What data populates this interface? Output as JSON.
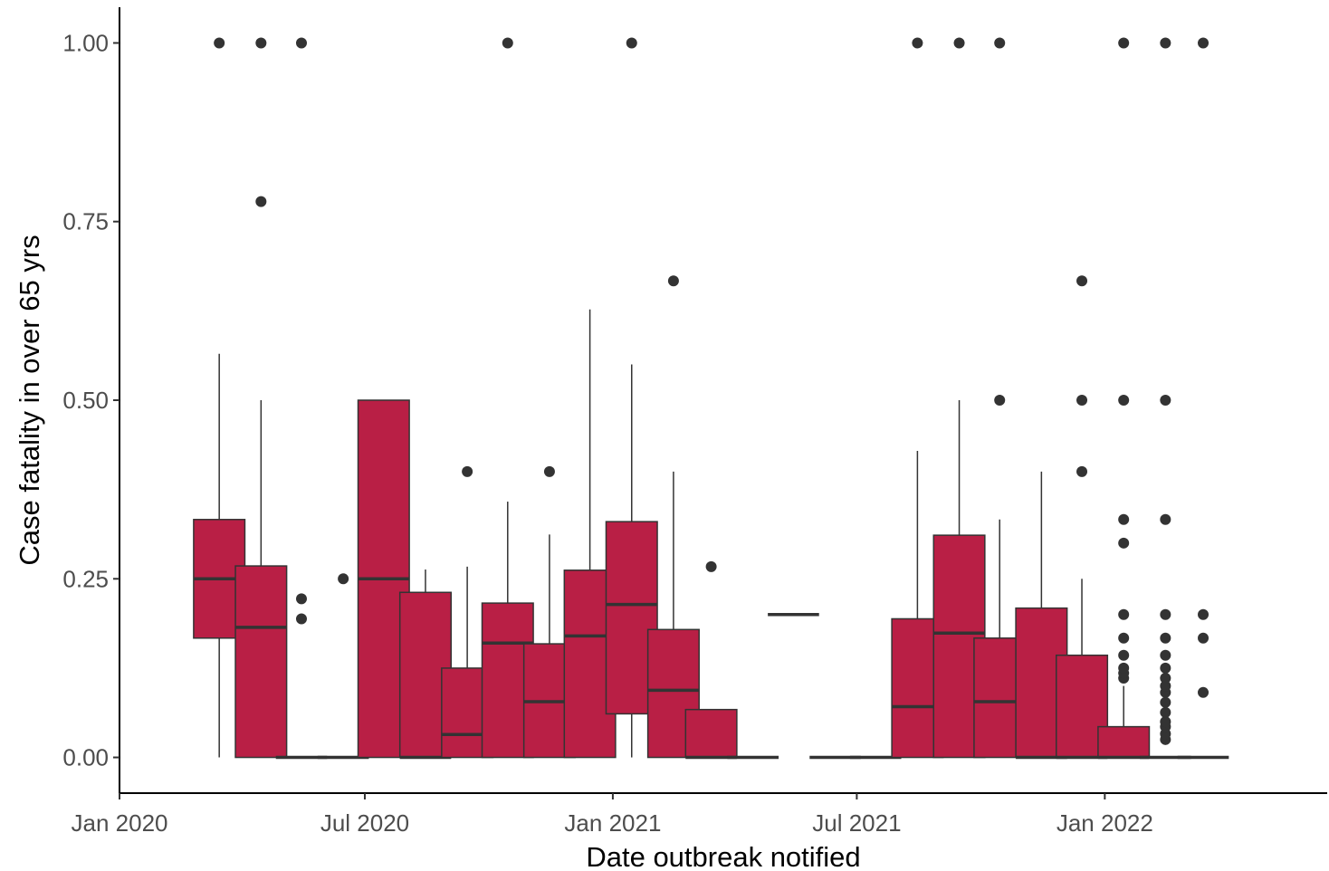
{
  "chart_data": {
    "type": "box",
    "xlabel": "Date outbreak notified",
    "ylabel": "Case fatality in over 65 yrs",
    "x_axis": {
      "type": "date",
      "range": [
        "2020-01-01",
        "2022-06-15"
      ],
      "ticks": [
        {
          "date": "2020-01-01",
          "label": "Jan 2020"
        },
        {
          "date": "2020-07-01",
          "label": "Jul 2020"
        },
        {
          "date": "2021-01-01",
          "label": "Jan 2021"
        },
        {
          "date": "2021-07-01",
          "label": "Jul 2021"
        },
        {
          "date": "2022-01-01",
          "label": "Jan 2022"
        }
      ]
    },
    "y_axis": {
      "range": [
        -0.05,
        1.05
      ],
      "ticks": [
        {
          "value": 0,
          "label": "0.00"
        },
        {
          "value": 0.25,
          "label": "0.25"
        },
        {
          "value": 0.5,
          "label": "0.50"
        },
        {
          "value": 0.75,
          "label": "0.75"
        },
        {
          "value": 1,
          "label": "1.00"
        }
      ]
    },
    "grid": false,
    "legend": "none",
    "fill_color": "#B91F45",
    "line_color": "#333333",
    "outlier_color": "#333333",
    "boxes": [
      {
        "month": "2020-03",
        "lower_whisker": 0.0,
        "q1": 0.167,
        "median": 0.25,
        "q3": 0.333,
        "upper_whisker": 0.565,
        "outliers": [
          1.0
        ]
      },
      {
        "month": "2020-04",
        "lower_whisker": 0.0,
        "q1": 0.0,
        "median": 0.182,
        "q3": 0.268,
        "upper_whisker": 0.5,
        "outliers": [
          0.778,
          1.0
        ]
      },
      {
        "month": "2020-05",
        "lower_whisker": 0.0,
        "q1": 0.0,
        "median": 0.0,
        "q3": 0.0,
        "upper_whisker": 0.0,
        "outliers": [
          0.194,
          0.222,
          1.0
        ]
      },
      {
        "month": "2020-06",
        "lower_whisker": 0.0,
        "q1": 0.0,
        "median": 0.0,
        "q3": 0.0,
        "upper_whisker": 0.0,
        "outliers": [
          0.25
        ]
      },
      {
        "month": "2020-07",
        "lower_whisker": 0.0,
        "q1": 0.0,
        "median": 0.25,
        "q3": 0.5,
        "upper_whisker": 0.5,
        "outliers": []
      },
      {
        "month": "2020-08",
        "lower_whisker": 0.0,
        "q1": 0.0,
        "median": 0.0,
        "q3": 0.231,
        "upper_whisker": 0.263,
        "outliers": []
      },
      {
        "month": "2020-09",
        "lower_whisker": 0.0,
        "q1": 0.0,
        "median": 0.032,
        "q3": 0.125,
        "upper_whisker": 0.267,
        "outliers": [
          0.4
        ]
      },
      {
        "month": "2020-10",
        "lower_whisker": 0.0,
        "q1": 0.0,
        "median": 0.16,
        "q3": 0.216,
        "upper_whisker": 0.358,
        "outliers": [
          1.0
        ]
      },
      {
        "month": "2020-11",
        "lower_whisker": 0.0,
        "q1": 0.0,
        "median": 0.078,
        "q3": 0.159,
        "upper_whisker": 0.312,
        "outliers": [
          0.4
        ]
      },
      {
        "month": "2020-12",
        "lower_whisker": 0.0,
        "q1": 0.0,
        "median": 0.17,
        "q3": 0.262,
        "upper_whisker": 0.627,
        "outliers": []
      },
      {
        "month": "2021-01",
        "lower_whisker": 0.0,
        "q1": 0.061,
        "median": 0.214,
        "q3": 0.33,
        "upper_whisker": 0.55,
        "outliers": [
          1.0
        ]
      },
      {
        "month": "2021-02",
        "lower_whisker": 0.0,
        "q1": 0.0,
        "median": 0.094,
        "q3": 0.179,
        "upper_whisker": 0.4,
        "outliers": [
          0.667
        ]
      },
      {
        "month": "2021-03",
        "lower_whisker": 0.0,
        "q1": 0.0,
        "median": 0.0,
        "q3": 0.067,
        "upper_whisker": 0.067,
        "outliers": [
          0.267
        ]
      },
      {
        "month": "2021-04",
        "lower_whisker": 0.0,
        "q1": 0.0,
        "median": 0.0,
        "q3": 0.0,
        "upper_whisker": 0.0,
        "outliers": []
      },
      {
        "month": "2021-05",
        "lower_whisker": 0.2,
        "q1": 0.2,
        "median": 0.2,
        "q3": 0.2,
        "upper_whisker": 0.2,
        "outliers": []
      },
      {
        "month": "2021-06",
        "lower_whisker": 0.0,
        "q1": 0.0,
        "median": 0.0,
        "q3": 0.0,
        "upper_whisker": 0.0,
        "outliers": []
      },
      {
        "month": "2021-07",
        "lower_whisker": 0.0,
        "q1": 0.0,
        "median": 0.0,
        "q3": 0.0,
        "upper_whisker": 0.0,
        "outliers": []
      },
      {
        "month": "2021-08",
        "lower_whisker": 0.0,
        "q1": 0.0,
        "median": 0.071,
        "q3": 0.194,
        "upper_whisker": 0.429,
        "outliers": [
          1.0
        ]
      },
      {
        "month": "2021-09",
        "lower_whisker": 0.0,
        "q1": 0.0,
        "median": 0.174,
        "q3": 0.311,
        "upper_whisker": 0.5,
        "outliers": [
          1.0
        ]
      },
      {
        "month": "2021-10",
        "lower_whisker": 0.0,
        "q1": 0.0,
        "median": 0.078,
        "q3": 0.167,
        "upper_whisker": 0.333,
        "outliers": [
          0.5,
          1.0
        ]
      },
      {
        "month": "2021-11",
        "lower_whisker": 0.0,
        "q1": 0.0,
        "median": 0.0,
        "q3": 0.209,
        "upper_whisker": 0.4,
        "outliers": []
      },
      {
        "month": "2021-12",
        "lower_whisker": 0.0,
        "q1": 0.0,
        "median": 0.0,
        "q3": 0.143,
        "upper_whisker": 0.25,
        "outliers": [
          0.4,
          0.5,
          0.667
        ]
      },
      {
        "month": "2022-01",
        "lower_whisker": 0.0,
        "q1": 0.0,
        "median": 0.0,
        "q3": 0.043,
        "upper_whisker": 0.1,
        "outliers": [
          0.111,
          0.118,
          0.125,
          0.143,
          0.167,
          0.2,
          0.3,
          0.333,
          0.5,
          1.0
        ]
      },
      {
        "month": "2022-02",
        "lower_whisker": 0.0,
        "q1": 0.0,
        "median": 0.0,
        "q3": 0.0,
        "upper_whisker": 0.0,
        "outliers": [
          0.025,
          0.033,
          0.043,
          0.05,
          0.063,
          0.077,
          0.091,
          0.1,
          0.111,
          0.125,
          0.143,
          0.167,
          0.2,
          0.333,
          0.5,
          1.0
        ]
      },
      {
        "month": "2022-03",
        "lower_whisker": 0.0,
        "q1": 0.0,
        "median": 0.0,
        "q3": 0.0,
        "upper_whisker": 0.0,
        "outliers": [
          0.091,
          0.167,
          0.2,
          1.0
        ]
      }
    ]
  }
}
